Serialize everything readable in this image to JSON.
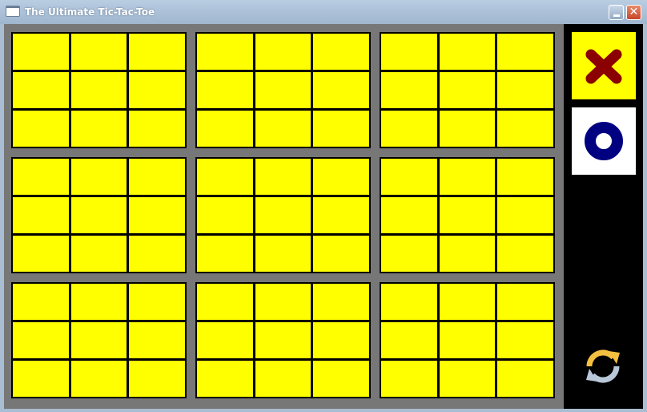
{
  "window": {
    "title": "The Ultimate Tic-Tac-Toe",
    "close_glyph": "✕"
  },
  "board": {
    "cell_color": "#ffff00",
    "grid_color": "#000000",
    "background": "#777777",
    "boards": [
      [
        "",
        "",
        "",
        "",
        "",
        "",
        "",
        "",
        ""
      ],
      [
        "",
        "",
        "",
        "",
        "",
        "",
        "",
        "",
        ""
      ],
      [
        "",
        "",
        "",
        "",
        "",
        "",
        "",
        "",
        ""
      ],
      [
        "",
        "",
        "",
        "",
        "",
        "",
        "",
        "",
        ""
      ],
      [
        "",
        "",
        "",
        "",
        "",
        "",
        "",
        "",
        ""
      ],
      [
        "",
        "",
        "",
        "",
        "",
        "",
        "",
        "",
        ""
      ],
      [
        "",
        "",
        "",
        "",
        "",
        "",
        "",
        "",
        ""
      ],
      [
        "",
        "",
        "",
        "",
        "",
        "",
        "",
        "",
        ""
      ],
      [
        "",
        "",
        "",
        "",
        "",
        "",
        "",
        "",
        ""
      ]
    ]
  },
  "side_panel": {
    "players": [
      {
        "symbol": "X",
        "color": "#8b0000",
        "background": "#ffff00",
        "active": true
      },
      {
        "symbol": "O",
        "color": "#000080",
        "background": "#ffffff",
        "active": false
      }
    ],
    "restart_icon": "refresh-icon"
  }
}
